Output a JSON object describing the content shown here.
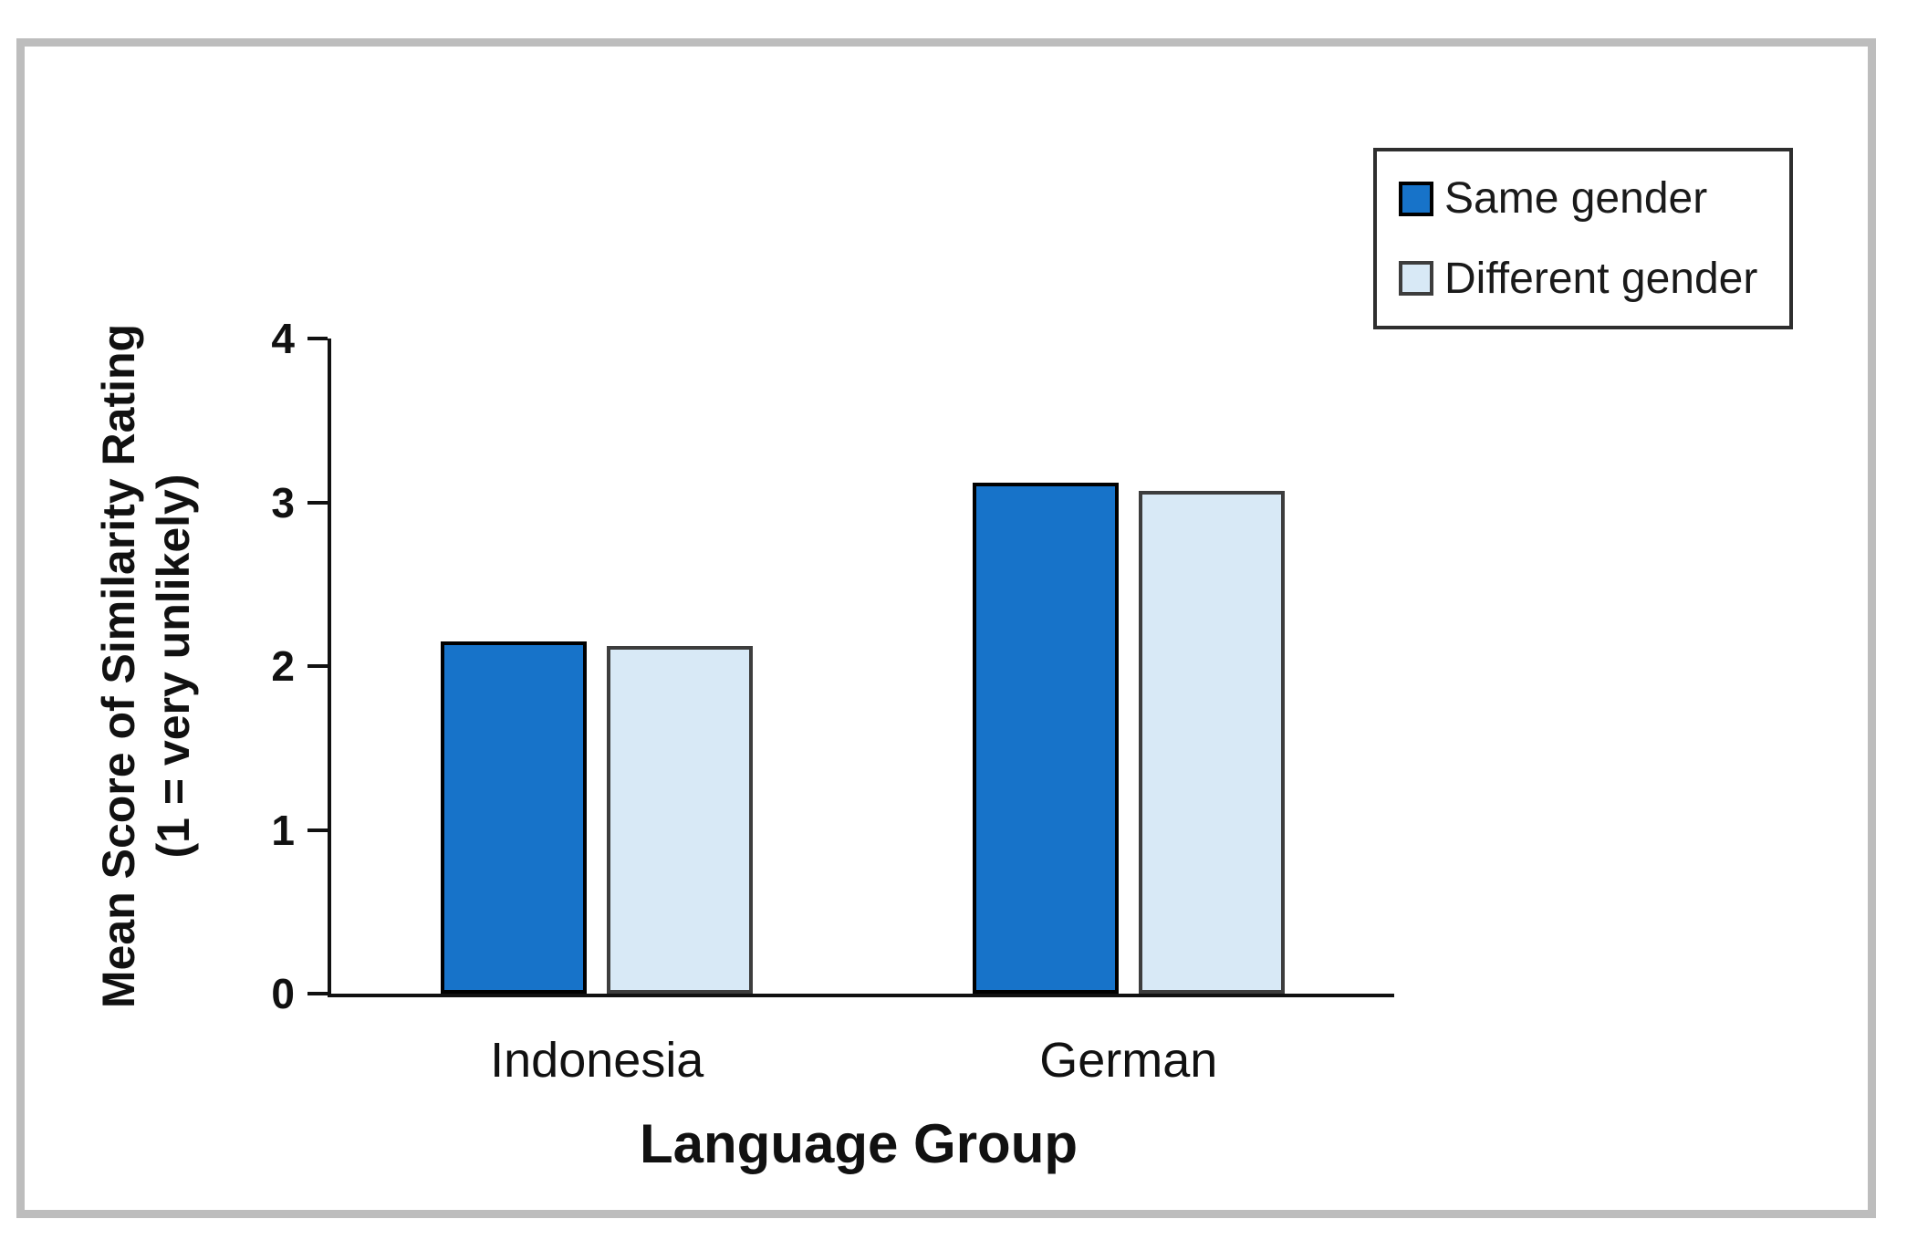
{
  "chart_data": {
    "type": "bar",
    "title": "",
    "categories": [
      "Indonesia",
      "German"
    ],
    "series": [
      {
        "name": "Same gender",
        "values": [
          2.15,
          3.12
        ],
        "fill_color": "#1773c9",
        "border_color": "#000000"
      },
      {
        "name": "Different gender",
        "values": [
          2.12,
          3.07
        ],
        "fill_color": "#d8e9f6",
        "border_color": "#3d3d3d"
      }
    ],
    "xlabel": "Language Group",
    "ylabel_line1": "Mean Score of Similarity Rating",
    "ylabel_line2": "(1 = very unlikely)",
    "ylim": [
      0,
      4
    ],
    "yticks": [
      0,
      1,
      2,
      3,
      4
    ],
    "legend_position": "top-right",
    "grid": false,
    "axis_color": "#111111",
    "frame_color": "#bdbdbd",
    "background_color": "#ffffff"
  }
}
